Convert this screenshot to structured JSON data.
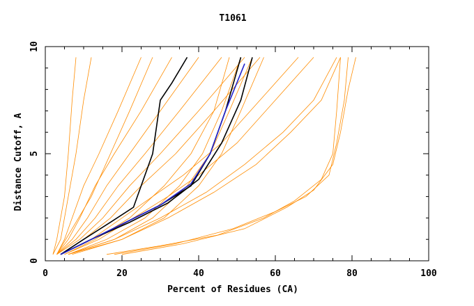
{
  "chart_data": {
    "type": "line",
    "title": "T1061",
    "xlabel": "Percent of Residues (CA)",
    "ylabel": "Distance Cutoff, A",
    "xlim": [
      0,
      100
    ],
    "ylim": [
      0,
      10
    ],
    "plot_ymax": 9.5,
    "x_ticks": [
      0,
      20,
      40,
      60,
      80,
      100
    ],
    "y_ticks": [
      0,
      5,
      10
    ],
    "grid": false,
    "legend": "none",
    "colors": {
      "bundle": "#ff8c00",
      "highlight_black": "#000000",
      "highlight_blue": "#2222cc"
    },
    "series": [
      {
        "color": "#ff8c00",
        "points": [
          [
            3,
            0.3
          ],
          [
            5,
            1
          ],
          [
            7,
            2
          ],
          [
            10,
            3.5
          ],
          [
            14,
            5
          ],
          [
            19,
            7
          ],
          [
            25,
            9.5
          ]
        ]
      },
      {
        "color": "#ff8c00",
        "points": [
          [
            3,
            0.3
          ],
          [
            6,
            1
          ],
          [
            9,
            2
          ],
          [
            13,
            3.5
          ],
          [
            18,
            5
          ],
          [
            25,
            7
          ],
          [
            33,
            9.5
          ]
        ]
      },
      {
        "color": "#ff8c00",
        "points": [
          [
            3,
            0.3
          ],
          [
            7,
            1
          ],
          [
            11,
            2
          ],
          [
            16,
            3.5
          ],
          [
            22,
            5
          ],
          [
            30,
            7
          ],
          [
            40,
            9.5
          ]
        ]
      },
      {
        "color": "#ff8c00",
        "points": [
          [
            3,
            0.3
          ],
          [
            8,
            1
          ],
          [
            13,
            2
          ],
          [
            19,
            3.5
          ],
          [
            26,
            5
          ],
          [
            35,
            7
          ],
          [
            46,
            9.5
          ]
        ]
      },
      {
        "color": "#ff8c00",
        "points": [
          [
            3,
            0.3
          ],
          [
            9,
            1
          ],
          [
            15,
            2
          ],
          [
            22,
            3.5
          ],
          [
            30,
            5
          ],
          [
            40,
            7
          ],
          [
            52,
            9.5
          ]
        ]
      },
      {
        "color": "#ff8c00",
        "points": [
          [
            4,
            0.3
          ],
          [
            10,
            1
          ],
          [
            17,
            2
          ],
          [
            25,
            3.5
          ],
          [
            34,
            5
          ],
          [
            44,
            7
          ],
          [
            56,
            9.5
          ]
        ]
      },
      {
        "color": "#ff8c00",
        "points": [
          [
            5,
            0.3
          ],
          [
            13,
            1
          ],
          [
            22,
            2
          ],
          [
            31,
            3.5
          ],
          [
            38,
            5
          ],
          [
            44,
            7
          ],
          [
            48,
            9.5
          ]
        ]
      },
      {
        "color": "#ff8c00",
        "points": [
          [
            6,
            0.3
          ],
          [
            16,
            1
          ],
          [
            26,
            2
          ],
          [
            35,
            3.5
          ],
          [
            41,
            5
          ],
          [
            46,
            7
          ],
          [
            51,
            9.5
          ]
        ]
      },
      {
        "color": "#ff8c00",
        "points": [
          [
            6,
            0.3
          ],
          [
            18,
            1
          ],
          [
            28,
            2
          ],
          [
            37,
            3.5
          ],
          [
            43,
            5
          ],
          [
            48,
            7
          ],
          [
            54,
            9.5
          ]
        ]
      },
      {
        "color": "#ff8c00",
        "points": [
          [
            7,
            0.3
          ],
          [
            20,
            1
          ],
          [
            31,
            2
          ],
          [
            40,
            3.5
          ],
          [
            46,
            5
          ],
          [
            51,
            7
          ],
          [
            57,
            9.5
          ]
        ]
      },
      {
        "color": "#ff8c00",
        "points": [
          [
            2,
            0.3
          ],
          [
            4,
            1
          ],
          [
            6,
            3
          ],
          [
            8,
            5
          ],
          [
            10,
            7.5
          ],
          [
            12,
            9.5
          ]
        ]
      },
      {
        "color": "#ff8c00",
        "points": [
          [
            2,
            0.3
          ],
          [
            3,
            1
          ],
          [
            5,
            3
          ],
          [
            6,
            5
          ],
          [
            7,
            7.5
          ],
          [
            8,
            9.5
          ]
        ]
      },
      {
        "color": "#ff8c00",
        "points": [
          [
            3,
            0.3
          ],
          [
            7,
            1.5
          ],
          [
            12,
            3
          ],
          [
            17,
            5
          ],
          [
            22,
            7
          ],
          [
            28,
            9.5
          ]
        ]
      },
      {
        "color": "#ff8c00",
        "points": [
          [
            4,
            0.3
          ],
          [
            12,
            1
          ],
          [
            20,
            2
          ],
          [
            28,
            3
          ],
          [
            36,
            4
          ],
          [
            46,
            5.5
          ],
          [
            56,
            7.5
          ],
          [
            66,
            9.5
          ]
        ]
      },
      {
        "color": "#ff8c00",
        "points": [
          [
            5,
            0.3
          ],
          [
            14,
            1
          ],
          [
            23,
            2
          ],
          [
            32,
            3
          ],
          [
            40,
            4
          ],
          [
            50,
            5.5
          ],
          [
            60,
            7.5
          ],
          [
            70,
            9.5
          ]
        ]
      },
      {
        "color": "#ff8c00",
        "points": [
          [
            6,
            0.3
          ],
          [
            18,
            1
          ],
          [
            30,
            2
          ],
          [
            42,
            3.2
          ],
          [
            52,
            4.5
          ],
          [
            62,
            6
          ],
          [
            70,
            7.5
          ],
          [
            76,
            9.5
          ]
        ]
      },
      {
        "color": "#ff8c00",
        "points": [
          [
            6,
            0.3
          ],
          [
            20,
            1
          ],
          [
            32,
            2
          ],
          [
            44,
            3.2
          ],
          [
            55,
            4.5
          ],
          [
            64,
            6
          ],
          [
            72,
            7.5
          ],
          [
            77,
            9.5
          ]
        ]
      },
      {
        "color": "#ff8c00",
        "points": [
          [
            16,
            0.3
          ],
          [
            30,
            0.7
          ],
          [
            45,
            1.2
          ],
          [
            57,
            2
          ],
          [
            65,
            2.8
          ],
          [
            72,
            3.8
          ],
          [
            75,
            5
          ],
          [
            76,
            7
          ],
          [
            77,
            9.5
          ]
        ]
      },
      {
        "color": "#ff8c00",
        "points": [
          [
            18,
            0.3
          ],
          [
            34,
            0.8
          ],
          [
            49,
            1.5
          ],
          [
            60,
            2.3
          ],
          [
            68,
            3
          ],
          [
            74,
            4
          ],
          [
            76,
            5.5
          ],
          [
            78,
            7.5
          ],
          [
            79,
            9.5
          ]
        ]
      },
      {
        "color": "#ff8c00",
        "points": [
          [
            20,
            0.3
          ],
          [
            36,
            0.8
          ],
          [
            52,
            1.5
          ],
          [
            63,
            2.5
          ],
          [
            70,
            3.3
          ],
          [
            75,
            4.5
          ],
          [
            77,
            6
          ],
          [
            79,
            8
          ],
          [
            81,
            9.5
          ]
        ]
      },
      {
        "color": "#000000",
        "points": [
          [
            4,
            0.3
          ],
          [
            10,
            1
          ],
          [
            17,
            1.8
          ],
          [
            23,
            2.5
          ],
          [
            28,
            5
          ],
          [
            30,
            7.5
          ],
          [
            33,
            8.3
          ],
          [
            37,
            9.5
          ]
        ]
      },
      {
        "color": "#000000",
        "points": [
          [
            4,
            0.3
          ],
          [
            12,
            1
          ],
          [
            21,
            1.8
          ],
          [
            30,
            2.6
          ],
          [
            38,
            3.5
          ],
          [
            43,
            5
          ],
          [
            47,
            7
          ],
          [
            51,
            9.5
          ]
        ]
      },
      {
        "color": "#000000",
        "points": [
          [
            4,
            0.3
          ],
          [
            12,
            1
          ],
          [
            22,
            1.8
          ],
          [
            32,
            2.7
          ],
          [
            40,
            3.8
          ],
          [
            46,
            5.5
          ],
          [
            51,
            7.5
          ],
          [
            54,
            9.5
          ]
        ]
      },
      {
        "color": "#2222cc",
        "points": [
          [
            4,
            0.3
          ],
          [
            12,
            1
          ],
          [
            21,
            1.8
          ],
          [
            30,
            2.6
          ],
          [
            38,
            3.6
          ],
          [
            43,
            5
          ],
          [
            47,
            7
          ],
          [
            52,
            9.2
          ]
        ]
      }
    ]
  }
}
